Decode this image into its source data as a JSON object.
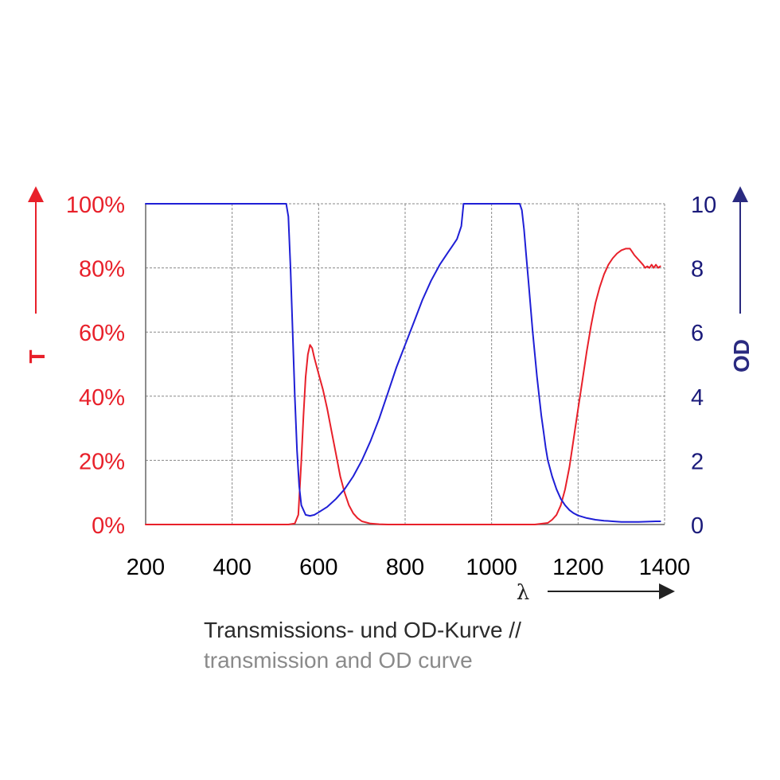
{
  "chart_data": {
    "type": "line",
    "title": "Transmissions- und OD-Kurve //",
    "subtitle": "transmission and OD curve",
    "xlabel": "λ",
    "ylabel_left": "T",
    "ylabel_right": "OD",
    "xlim": [
      200,
      1400
    ],
    "ylim_left": [
      0,
      100
    ],
    "ylim_right": [
      0,
      10
    ],
    "x_ticks": [
      "200",
      "400",
      "600",
      "800",
      "1000",
      "1200",
      "1400"
    ],
    "y_left_ticks": [
      "0%",
      "20%",
      "40%",
      "60%",
      "80%",
      "100%"
    ],
    "y_right_ticks": [
      "0",
      "2",
      "4",
      "6",
      "8",
      "10"
    ],
    "grid": true,
    "colors": {
      "transmission": "#e8202a",
      "od": "#1f1fd6",
      "left_axis": "#e8202a",
      "right_axis": "#1a1a7a",
      "grid": "#888888"
    },
    "series": [
      {
        "axis": "left",
        "x": [
          200,
          530,
          545,
          553,
          560,
          565,
          570,
          575,
          580,
          585,
          590,
          600,
          610,
          620,
          630,
          640,
          650,
          660,
          670,
          680,
          690,
          700,
          720,
          740,
          760,
          800,
          900,
          1000,
          1100,
          1130,
          1140,
          1150,
          1160,
          1170,
          1180,
          1190,
          1200,
          1210,
          1220,
          1230,
          1240,
          1250,
          1260,
          1270,
          1280,
          1290,
          1300,
          1310,
          1320,
          1325,
          1330,
          1340,
          1350,
          1355,
          1360,
          1365,
          1370,
          1375,
          1380,
          1385,
          1390
        ],
        "y": [
          0,
          0,
          0.3,
          3,
          20,
          34,
          46,
          53,
          56,
          55,
          52,
          47,
          42,
          36,
          29,
          22,
          15,
          10,
          6,
          3.5,
          2,
          1,
          0.3,
          0.1,
          0,
          0,
          0,
          0,
          0,
          0.5,
          1.5,
          3,
          6,
          11,
          18,
          27,
          36,
          45,
          54,
          62,
          69,
          74,
          78,
          81,
          83,
          84.5,
          85.5,
          86,
          86,
          85,
          84,
          82.5,
          81,
          80,
          80.5,
          80,
          81,
          80,
          81,
          80,
          80.5
        ]
      },
      {
        "axis": "right",
        "x": [
          200,
          525,
          530,
          535,
          540,
          545,
          550,
          555,
          560,
          570,
          580,
          590,
          600,
          620,
          640,
          660,
          680,
          700,
          720,
          740,
          760,
          780,
          800,
          820,
          840,
          860,
          880,
          900,
          910,
          920,
          930,
          935,
          1065,
          1070,
          1075,
          1080,
          1085,
          1090,
          1095,
          1100,
          1105,
          1110,
          1115,
          1120,
          1125,
          1130,
          1140,
          1150,
          1160,
          1170,
          1180,
          1190,
          1200,
          1220,
          1240,
          1260,
          1280,
          1300,
          1320,
          1340,
          1360,
          1380,
          1390
        ],
        "y": [
          10,
          10,
          9.6,
          8,
          6,
          4,
          2.3,
          1.2,
          0.6,
          0.3,
          0.27,
          0.3,
          0.38,
          0.55,
          0.8,
          1.1,
          1.5,
          2.0,
          2.6,
          3.3,
          4.1,
          4.9,
          5.6,
          6.3,
          7.0,
          7.6,
          8.1,
          8.5,
          8.7,
          8.9,
          9.3,
          10,
          10,
          9.8,
          9.2,
          8.4,
          7.6,
          6.8,
          6.0,
          5.3,
          4.6,
          4.0,
          3.4,
          2.9,
          2.4,
          2.0,
          1.5,
          1.1,
          0.8,
          0.6,
          0.45,
          0.35,
          0.28,
          0.2,
          0.15,
          0.12,
          0.1,
          0.08,
          0.08,
          0.08,
          0.09,
          0.1,
          0.1
        ]
      }
    ]
  }
}
